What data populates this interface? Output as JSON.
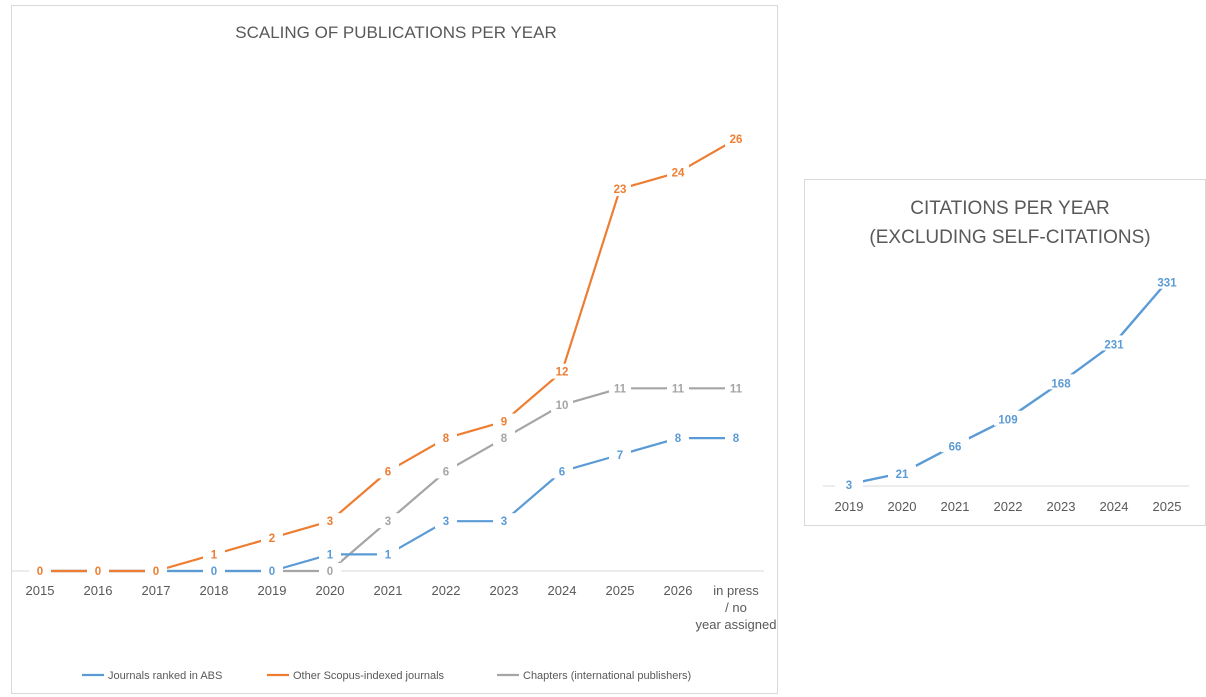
{
  "chart_data": [
    {
      "type": "line",
      "title": "SCALING OF PUBLICATIONS PER YEAR",
      "categories": [
        "2015",
        "2016",
        "2017",
        "2018",
        "2019",
        "2020",
        "2021",
        "2022",
        "2023",
        "2024",
        "2025",
        "2026",
        "in press / no year assigned"
      ],
      "series": [
        {
          "name": "Journals ranked in ABS",
          "color": "#5b9bd5",
          "values": [
            0,
            0,
            0,
            0,
            0,
            1,
            1,
            3,
            3,
            6,
            7,
            8,
            8
          ]
        },
        {
          "name": "Other Scopus-indexed journals",
          "color": "#ed7d31",
          "values": [
            0,
            0,
            0,
            1,
            2,
            3,
            6,
            8,
            9,
            12,
            23,
            24,
            26
          ]
        },
        {
          "name": "Chapters (international publishers)",
          "color": "#a5a5a5",
          "values": [
            0,
            0,
            0,
            0,
            0,
            0,
            3,
            6,
            8,
            10,
            11,
            11,
            11
          ]
        }
      ],
      "ylim": [
        0,
        28
      ],
      "grid": false,
      "legend": "bottom"
    },
    {
      "type": "line",
      "title": "CITATIONS PER YEAR (EXCLUDING SELF-CITATIONS)",
      "title_lines": [
        "CITATIONS PER YEAR",
        "(EXCLUDING SELF-CITATIONS)"
      ],
      "categories": [
        "2019",
        "2020",
        "2021",
        "2022",
        "2023",
        "2024",
        "2025"
      ],
      "series": [
        {
          "color": "#5b9bd5",
          "values": [
            3,
            21,
            66,
            109,
            168,
            231,
            331
          ]
        }
      ],
      "ylim": [
        0,
        350
      ],
      "grid": false,
      "legend": "none"
    }
  ]
}
